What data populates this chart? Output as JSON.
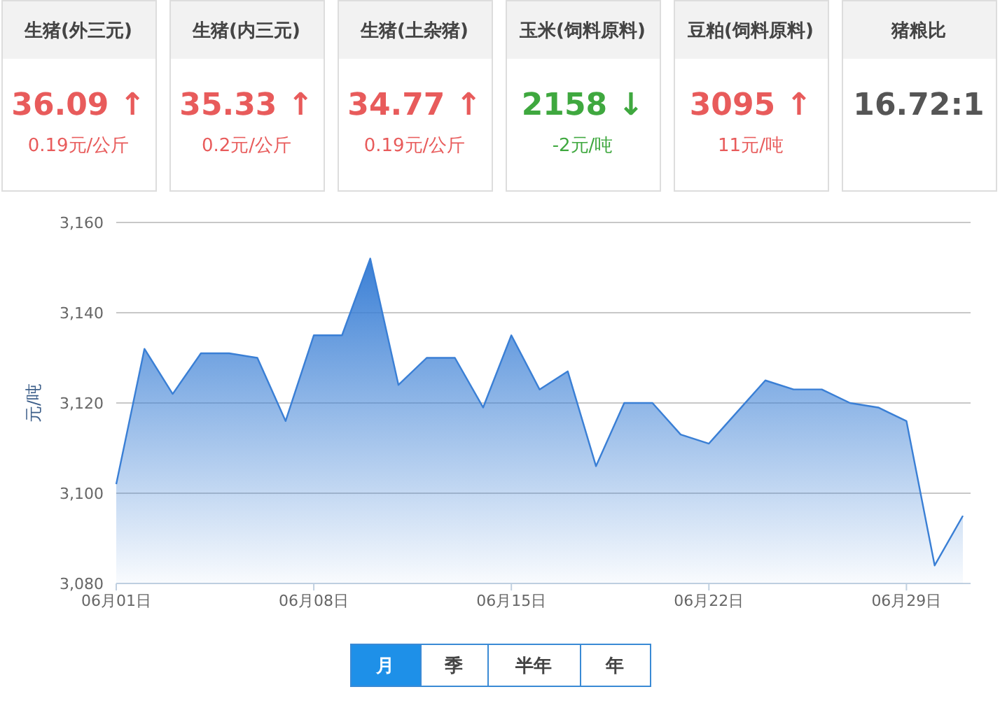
{
  "chart_data": [
    {
      "type": "other",
      "title": "生猪(外三元)",
      "annotations": [
        "36.09 ↑",
        "0.19元/公斤"
      ],
      "color": "#e85b5b"
    },
    {
      "type": "other",
      "title": "生猪(内三元)",
      "annotations": [
        "35.33 ↑",
        "0.2元/公斤"
      ],
      "color": "#e85b5b"
    },
    {
      "type": "other",
      "title": "生猪(土杂猪)",
      "annotations": [
        "34.77 ↑",
        "0.19元/公斤"
      ],
      "color": "#e85b5b"
    },
    {
      "type": "other",
      "title": "玉米(饲料原料)",
      "annotations": [
        "2158 ↓",
        "-2元/吨"
      ],
      "color": "#3fa83f"
    },
    {
      "type": "other",
      "title": "豆粕(饲料原料)",
      "annotations": [
        "3095 ↑",
        "11元/吨"
      ],
      "color": "#e85b5b"
    },
    {
      "type": "other",
      "title": "猪粮比",
      "annotations": [
        "16.72:1"
      ],
      "color": "#555555"
    },
    {
      "type": "area",
      "ylabel": "元/吨",
      "categories": [
        "06月01日",
        null,
        null,
        null,
        null,
        null,
        null,
        "06月08日",
        null,
        null,
        null,
        null,
        null,
        null,
        "06月15日",
        null,
        null,
        null,
        null,
        null,
        null,
        "06月22日",
        null,
        null,
        null,
        null,
        null,
        null,
        "06月29日",
        null,
        null
      ],
      "values": [
        3102,
        3132,
        3122,
        3131,
        3131,
        3130,
        3116,
        3135,
        3135,
        3152,
        3124,
        3130,
        3130,
        3119,
        3135,
        3123,
        3127,
        3106,
        3120,
        3120,
        3113,
        3111,
        3118,
        3125,
        3123,
        3123,
        3120,
        3119,
        3116,
        3084,
        3095
      ],
      "color": "#3a7fd5",
      "ylim": [
        3080,
        3160
      ],
      "yticks": [
        {
          "value": 3080,
          "label": "3,080"
        },
        {
          "value": 3100,
          "label": "3,100"
        },
        {
          "value": 3120,
          "label": "3,120"
        },
        {
          "value": 3140,
          "label": "3,140"
        },
        {
          "value": 3160,
          "label": "3,160"
        }
      ],
      "grid": "y",
      "annotations": [
        "月",
        "季",
        "半年",
        "年"
      ]
    }
  ]
}
